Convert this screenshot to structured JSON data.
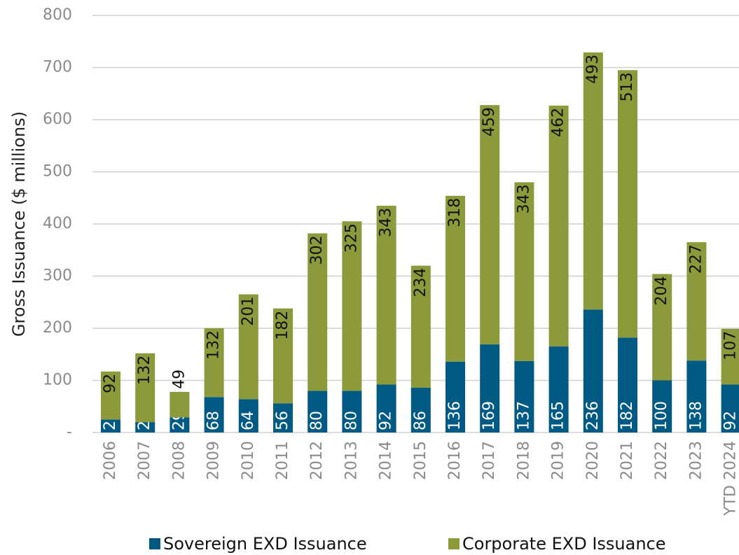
{
  "chart_data": {
    "type": "stacked_bar",
    "y_label": "Gross Issuance ($ millions)",
    "categories": [
      "2006",
      "2007",
      "2008",
      "2009",
      "2010",
      "2011",
      "2012",
      "2013",
      "2014",
      "2015",
      "2016",
      "2017",
      "2018",
      "2019",
      "2020",
      "2021",
      "2022",
      "2023",
      "YTD 2024"
    ],
    "series": [
      {
        "name": "Sovereign EXD Issuance",
        "color": "#005a84",
        "values": [
          25,
          20,
          29,
          68,
          64,
          56,
          80,
          80,
          92,
          86,
          136,
          169,
          137,
          165,
          236,
          182,
          100,
          138,
          92
        ]
      },
      {
        "name": "Corporate EXD Issuance",
        "color": "#8c9a3c",
        "values": [
          92,
          132,
          49,
          132,
          201,
          182,
          302,
          325,
          343,
          234,
          318,
          459,
          343,
          462,
          493,
          513,
          204,
          227,
          107
        ]
      }
    ],
    "ylim": [
      0,
      800
    ],
    "yticks": [
      {
        "value": 0,
        "label": "-"
      },
      100,
      200,
      300,
      400,
      500,
      600,
      700,
      800
    ],
    "grid": true,
    "legend": "bottom"
  }
}
